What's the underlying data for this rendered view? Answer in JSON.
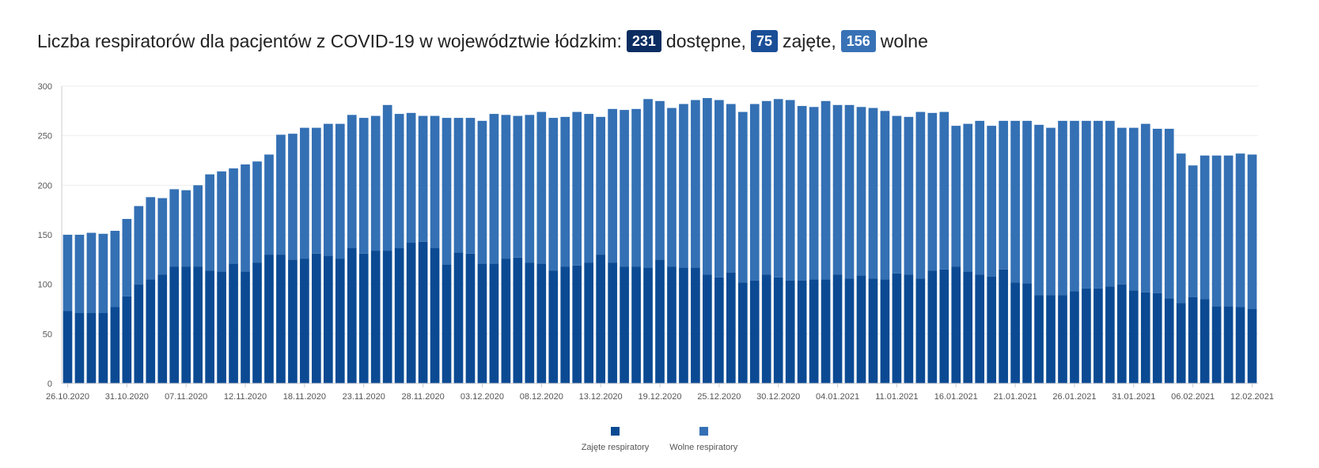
{
  "header": {
    "prefix": "Liczba respiratorów dla pacjentów z COVID-19 w województwie łódzkim:",
    "available_value": "231",
    "available_label": "dostępne,",
    "occupied_value": "75",
    "occupied_label": "zajęte,",
    "free_value": "156",
    "free_label": "wolne"
  },
  "colors": {
    "occupied": "#0b4a93",
    "free": "#3470b4",
    "badge_available": "#0b2d61",
    "badge_occupied": "#1a4f97",
    "badge_free": "#3872b6",
    "axis": "#cccccc",
    "grid": "#eeeeee"
  },
  "chart_data": {
    "type": "bar",
    "stacked": true,
    "ylim": [
      0,
      300
    ],
    "yticks": [
      0,
      50,
      100,
      150,
      200,
      250,
      300
    ],
    "xtick_labels": [
      "26.10.2020",
      "31.10.2020",
      "07.11.2020",
      "12.11.2020",
      "18.11.2020",
      "23.11.2020",
      "28.11.2020",
      "03.12.2020",
      "08.12.2020",
      "13.12.2020",
      "19.12.2020",
      "25.12.2020",
      "30.12.2020",
      "04.01.2021",
      "11.01.2021",
      "16.01.2021",
      "21.01.2021",
      "26.01.2021",
      "31.01.2021",
      "06.02.2021",
      "12.02.2021"
    ],
    "legend_position": "bottom",
    "series": [
      {
        "name": "Zajęte respiratory",
        "values": [
          73,
          71,
          71,
          71,
          77,
          88,
          100,
          105,
          110,
          118,
          118,
          118,
          114,
          113,
          121,
          113,
          122,
          130,
          130,
          125,
          126,
          131,
          129,
          126,
          137,
          131,
          134,
          134,
          137,
          142,
          143,
          137,
          120,
          132,
          131,
          121,
          121,
          126,
          127,
          122,
          121,
          114,
          118,
          119,
          122,
          130,
          122,
          118,
          118,
          117,
          125,
          118,
          117,
          117,
          110,
          107,
          112,
          102,
          104,
          110,
          107,
          104,
          104,
          105,
          105,
          110,
          106,
          109,
          106,
          105,
          111,
          110,
          106,
          114,
          115,
          118,
          113,
          110,
          108,
          115,
          102,
          101,
          89,
          89,
          89,
          93,
          96,
          96,
          98,
          100,
          94,
          92,
          91,
          86,
          81,
          87,
          85,
          78,
          78,
          77,
          75
        ]
      },
      {
        "name": "Wolne respiratory",
        "values": [
          77,
          79,
          81,
          80,
          77,
          78,
          79,
          83,
          77,
          78,
          77,
          82,
          97,
          101,
          96,
          108,
          102,
          101,
          121,
          127,
          132,
          127,
          133,
          136,
          134,
          137,
          136,
          147,
          135,
          131,
          127,
          133,
          148,
          136,
          137,
          144,
          151,
          145,
          143,
          149,
          153,
          154,
          151,
          155,
          150,
          139,
          155,
          158,
          159,
          170,
          160,
          160,
          165,
          169,
          178,
          179,
          170,
          172,
          178,
          175,
          180,
          182,
          176,
          174,
          180,
          171,
          175,
          170,
          172,
          170,
          159,
          159,
          168,
          159,
          159,
          142,
          149,
          155,
          152,
          150,
          163,
          164,
          172,
          169,
          176,
          172,
          169,
          169,
          167,
          158,
          164,
          170,
          166,
          171,
          151,
          133,
          145,
          152,
          152,
          155,
          156
        ]
      }
    ]
  }
}
